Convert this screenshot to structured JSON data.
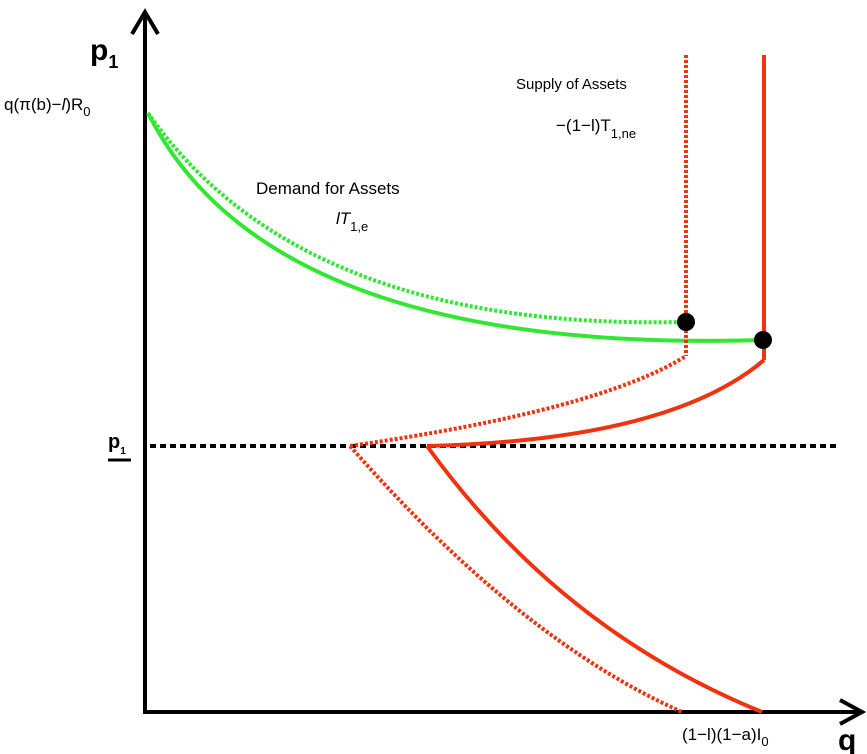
{
  "axes": {
    "y_main": "p",
    "y_sub": "1",
    "x_main": "q"
  },
  "labels": {
    "top_price": {
      "pre": "q(π(b)−",
      "italic": "l",
      "post": ")R",
      "sub": "0"
    },
    "floor_price": {
      "main": "p",
      "sub": "1"
    },
    "x_intercept": {
      "main": "(1−l)(1−a)I",
      "sub": "0"
    },
    "demand_title": "Demand for Assets",
    "demand_formula": {
      "italic": "lT",
      "sub": "1,e"
    },
    "supply_title": "Supply of Assets",
    "supply_formula": {
      "main": "−(1−l)T",
      "sub": "1,ne"
    }
  },
  "colors": {
    "demand": "#33e633",
    "supply": "#ee3311",
    "axis": "#000000",
    "floor_line": "#000000"
  }
}
